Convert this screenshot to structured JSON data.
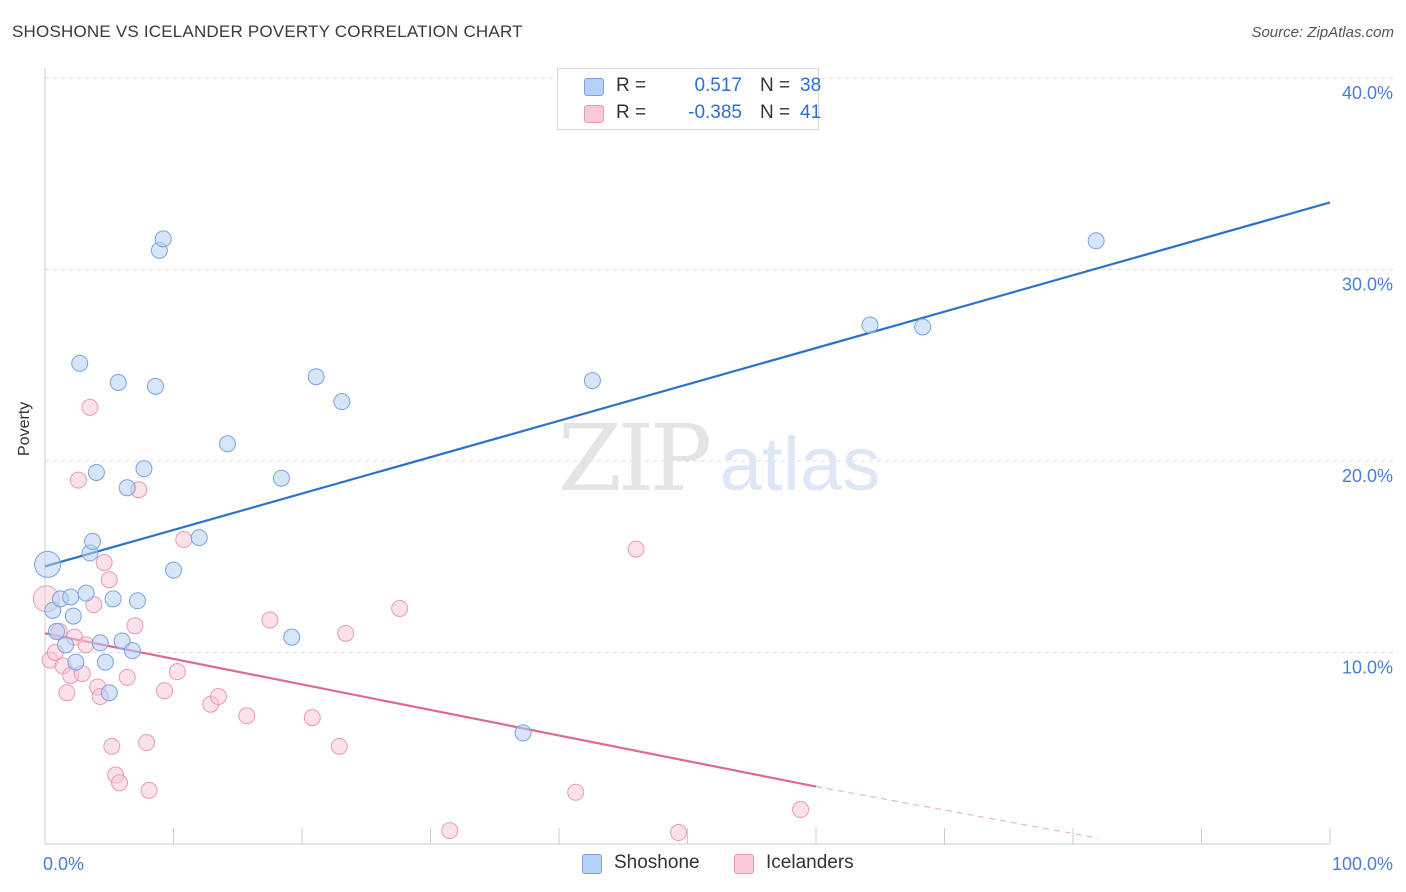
{
  "title": "SHOSHONE VS ICELANDER POVERTY CORRELATION CHART",
  "source": "Source: ZipAtlas.com",
  "watermark": {
    "zip": "ZIP",
    "atlas": "atlas"
  },
  "legend": {
    "rows": [
      {
        "r_label": "R =",
        "r_value": "0.517",
        "n_label": "N =",
        "n_value": "38"
      },
      {
        "r_label": "R =",
        "r_value": "-0.385",
        "n_label": "N =",
        "n_value": "41"
      }
    ]
  },
  "bottom_legend": [
    "Shoshone",
    "Icelanders"
  ],
  "colors": {
    "shoshone_fill": "#b7d0f3",
    "shoshone_stroke": "#7aa3e0",
    "shoshone_line": "#2c72c9",
    "icelander_fill": "#f8c9d8",
    "icelander_stroke": "#e89ab3",
    "icelander_line": "#e06896",
    "grid": "#dddddd",
    "tick_label": "#4a7fd0"
  },
  "chart_data": {
    "type": "scatter",
    "xlabel": "",
    "ylabel": "Poverty",
    "xlim": [
      0,
      100
    ],
    "ylim": [
      0,
      40
    ],
    "x_tick_labels": [
      "0.0%",
      "100.0%"
    ],
    "y_ticks": [
      10,
      20,
      30,
      40
    ],
    "y_tick_labels": [
      "10.0%",
      "20.0%",
      "30.0%",
      "40.0%"
    ],
    "grid": "horizontal dashed",
    "legend_position": "top-center",
    "series": [
      {
        "name": "Shoshone",
        "R": 0.517,
        "N": 38,
        "trend": {
          "x": [
            0,
            100
          ],
          "y": [
            14.5,
            33.5
          ]
        },
        "points": [
          {
            "x": 0.2,
            "y": 14.6,
            "big": true
          },
          {
            "x": 0.6,
            "y": 12.2
          },
          {
            "x": 0.9,
            "y": 11.1
          },
          {
            "x": 1.2,
            "y": 12.8
          },
          {
            "x": 1.6,
            "y": 10.4
          },
          {
            "x": 2.0,
            "y": 12.9
          },
          {
            "x": 2.2,
            "y": 11.9
          },
          {
            "x": 2.4,
            "y": 9.5
          },
          {
            "x": 2.7,
            "y": 25.1
          },
          {
            "x": 3.2,
            "y": 13.1
          },
          {
            "x": 3.5,
            "y": 15.2
          },
          {
            "x": 3.7,
            "y": 15.8
          },
          {
            "x": 4.0,
            "y": 19.4
          },
          {
            "x": 4.3,
            "y": 10.5
          },
          {
            "x": 4.7,
            "y": 9.5
          },
          {
            "x": 5.0,
            "y": 7.9
          },
          {
            "x": 5.3,
            "y": 12.8
          },
          {
            "x": 5.7,
            "y": 24.1
          },
          {
            "x": 6.0,
            "y": 10.6
          },
          {
            "x": 6.4,
            "y": 18.6
          },
          {
            "x": 6.8,
            "y": 10.1
          },
          {
            "x": 7.2,
            "y": 12.7
          },
          {
            "x": 7.7,
            "y": 19.6
          },
          {
            "x": 8.6,
            "y": 23.9
          },
          {
            "x": 8.9,
            "y": 31.0
          },
          {
            "x": 9.2,
            "y": 31.6
          },
          {
            "x": 10.0,
            "y": 14.3
          },
          {
            "x": 12.0,
            "y": 16.0
          },
          {
            "x": 14.2,
            "y": 20.9
          },
          {
            "x": 18.4,
            "y": 19.1
          },
          {
            "x": 19.2,
            "y": 10.8
          },
          {
            "x": 21.1,
            "y": 24.4
          },
          {
            "x": 23.1,
            "y": 23.1
          },
          {
            "x": 37.2,
            "y": 5.8
          },
          {
            "x": 42.6,
            "y": 24.2
          },
          {
            "x": 64.2,
            "y": 27.1
          },
          {
            "x": 68.3,
            "y": 27.0
          },
          {
            "x": 81.8,
            "y": 31.5
          }
        ]
      },
      {
        "name": "Icelanders",
        "R": -0.385,
        "N": 41,
        "trend": {
          "x": [
            0,
            60,
            82
          ],
          "y": [
            11.0,
            3.0,
            0.3
          ],
          "solid_until_x": 60
        },
        "points": [
          {
            "x": 0.1,
            "y": 12.8,
            "big": true
          },
          {
            "x": 0.4,
            "y": 9.6
          },
          {
            "x": 0.8,
            "y": 10.0
          },
          {
            "x": 1.1,
            "y": 11.1
          },
          {
            "x": 1.4,
            "y": 9.3
          },
          {
            "x": 1.7,
            "y": 7.9
          },
          {
            "x": 2.0,
            "y": 8.8
          },
          {
            "x": 2.3,
            "y": 10.8
          },
          {
            "x": 2.6,
            "y": 19.0
          },
          {
            "x": 2.9,
            "y": 8.9
          },
          {
            "x": 3.2,
            "y": 10.4
          },
          {
            "x": 3.5,
            "y": 22.8
          },
          {
            "x": 3.8,
            "y": 12.5
          },
          {
            "x": 4.1,
            "y": 8.2
          },
          {
            "x": 4.3,
            "y": 7.7
          },
          {
            "x": 4.6,
            "y": 14.7
          },
          {
            "x": 5.0,
            "y": 13.8
          },
          {
            "x": 5.2,
            "y": 5.1
          },
          {
            "x": 5.5,
            "y": 3.6
          },
          {
            "x": 5.8,
            "y": 3.2
          },
          {
            "x": 6.4,
            "y": 8.7
          },
          {
            "x": 7.0,
            "y": 11.4
          },
          {
            "x": 7.3,
            "y": 18.5
          },
          {
            "x": 7.9,
            "y": 5.3
          },
          {
            "x": 8.1,
            "y": 2.8
          },
          {
            "x": 9.3,
            "y": 8.0
          },
          {
            "x": 10.3,
            "y": 9.0
          },
          {
            "x": 10.8,
            "y": 15.9
          },
          {
            "x": 12.9,
            "y": 7.3
          },
          {
            "x": 13.5,
            "y": 7.7
          },
          {
            "x": 15.7,
            "y": 6.7
          },
          {
            "x": 17.5,
            "y": 11.7
          },
          {
            "x": 20.8,
            "y": 6.6
          },
          {
            "x": 22.9,
            "y": 5.1
          },
          {
            "x": 23.4,
            "y": 11.0
          },
          {
            "x": 27.6,
            "y": 12.3
          },
          {
            "x": 31.5,
            "y": 0.7
          },
          {
            "x": 41.3,
            "y": 2.7
          },
          {
            "x": 46.0,
            "y": 15.4
          },
          {
            "x": 49.3,
            "y": 0.6
          },
          {
            "x": 58.8,
            "y": 1.8
          }
        ]
      }
    ]
  }
}
